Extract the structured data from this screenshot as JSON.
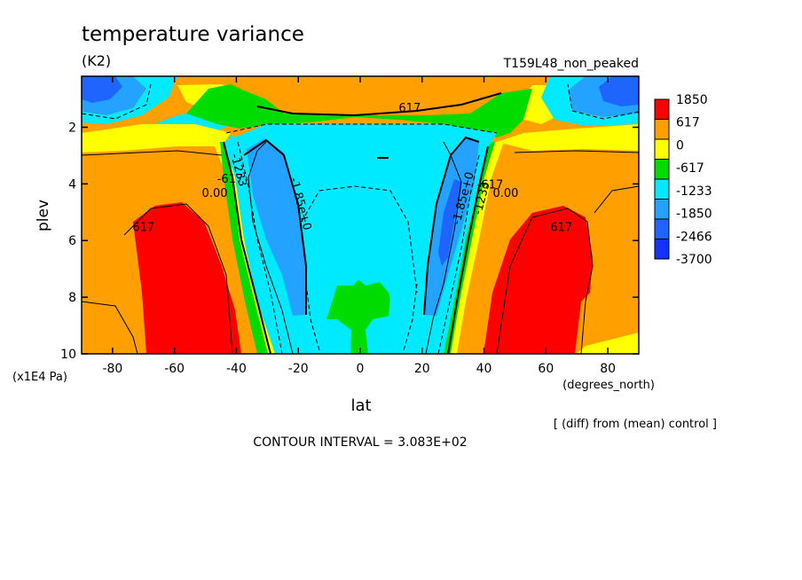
{
  "chart_data": {
    "type": "heatmap",
    "title": "temperature variance",
    "units": "(K2)",
    "run_label": "T159L48_non_peaked",
    "xlabel": "lat",
    "xunits": "(degrees_north)",
    "ylabel": "plev",
    "yunits": "(x1E4 Pa)",
    "diff_note": "[ (diff) from (mean) control ]",
    "contour_interval": "CONTOUR INTERVAL = 3.083E+02",
    "xlim": [
      -90,
      90
    ],
    "ylim": [
      10,
      0.2
    ],
    "x_ticks": [
      -80,
      -60,
      -40,
      -20,
      0,
      20,
      40,
      60,
      80
    ],
    "x_tick_labels": [
      "-80",
      "-60",
      "-40",
      "-20",
      "0",
      "20",
      "40",
      "60",
      "80"
    ],
    "y_ticks": [
      2,
      4,
      6,
      8,
      10
    ],
    "y_tick_labels": [
      "2",
      "4",
      "6",
      "8",
      "10"
    ],
    "colorbar": {
      "levels": [
        "1850",
        "617",
        "0",
        "-617",
        "-1233",
        "-1850",
        "-2466",
        "-3700"
      ],
      "colors": [
        "#ff0000",
        "#ff9f00",
        "#ffff00",
        "#00dc00",
        "#00eaff",
        "#23a3ff",
        "#1e64ff",
        "#1432ff"
      ]
    },
    "contour_labels": [
      {
        "text": "617",
        "lat": 16,
        "plev": 1.3
      },
      {
        "text": "617",
        "lat": -70,
        "plev": 5.5
      },
      {
        "text": "617",
        "lat": 65,
        "plev": 5.5
      },
      {
        "text": "0.00",
        "lat": -47,
        "plev": 4.3
      },
      {
        "text": "0.00",
        "lat": 47,
        "plev": 4.3
      },
      {
        "text": "-617",
        "lat": -42,
        "plev": 3.8
      },
      {
        "text": "-617",
        "lat": 42,
        "plev": 4.0
      },
      {
        "text": "-1233",
        "lat": -39,
        "plev": 3.5
      },
      {
        "text": "-1233",
        "lat": 39,
        "plev": 4.5
      },
      {
        "text": "-1.85e+0",
        "lat": -19,
        "plev": 4.7
      },
      {
        "text": "-1.85e+0",
        "lat": 33,
        "plev": 4.5
      }
    ]
  }
}
